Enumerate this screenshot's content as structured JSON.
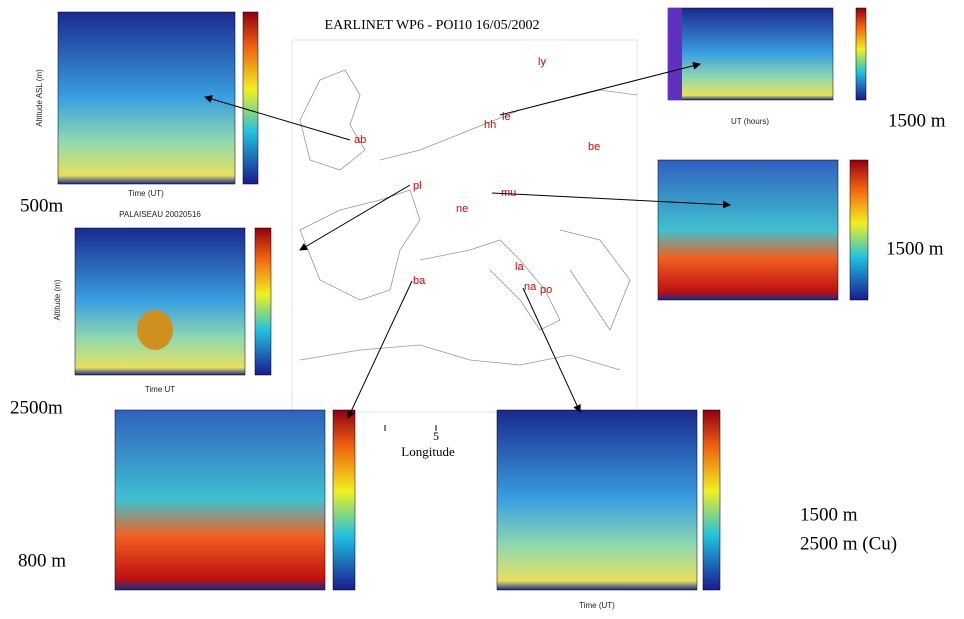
{
  "map": {
    "title": "EARLINET WP6 - POI10 16/05/2002",
    "x_axis_label": "Longitude",
    "x_tick": "5",
    "stations": [
      "ab",
      "hh",
      "le",
      "ly",
      "be",
      "pl",
      "mu",
      "ne",
      "ba",
      "la",
      "na",
      "po"
    ]
  },
  "altitudes": [
    "500m",
    "1500 m",
    "1500 m",
    "2500m",
    "800 m",
    "1500 m",
    "2500 m (Cu)"
  ],
  "panels": {
    "palaiseau_title": "PALAISEAU 20020516",
    "time_label_1": "Time (UT)",
    "altitude_label_1": "Altitude ASL (m)",
    "time_label_2": "Time UT",
    "altitude_label_2": "Altitude (m)",
    "time_label_3": "UT (hours)",
    "time_label_4": "Time (UT)"
  }
}
